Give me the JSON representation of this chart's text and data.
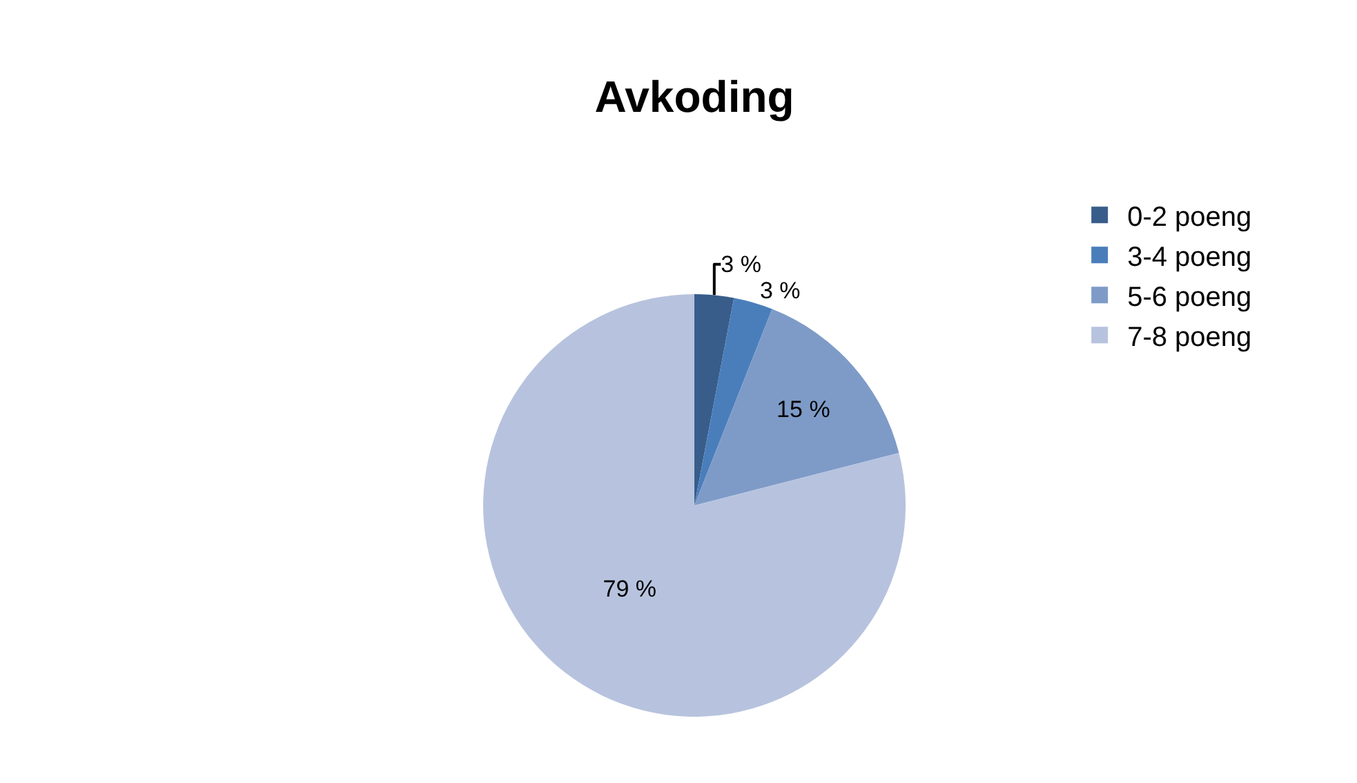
{
  "chart_data": {
    "type": "pie",
    "title": "Avkoding",
    "categories": [
      "0-2 poeng",
      "3-4 poeng",
      "5-6 poeng",
      "7-8 poeng"
    ],
    "values": [
      3,
      3,
      15,
      79
    ],
    "value_labels": [
      "3 %",
      "3 %",
      "15 %",
      "79 %"
    ],
    "colors": [
      "#385d8a",
      "#4a7ebb",
      "#7e9bc8",
      "#b7c3de"
    ],
    "legend": "right"
  }
}
